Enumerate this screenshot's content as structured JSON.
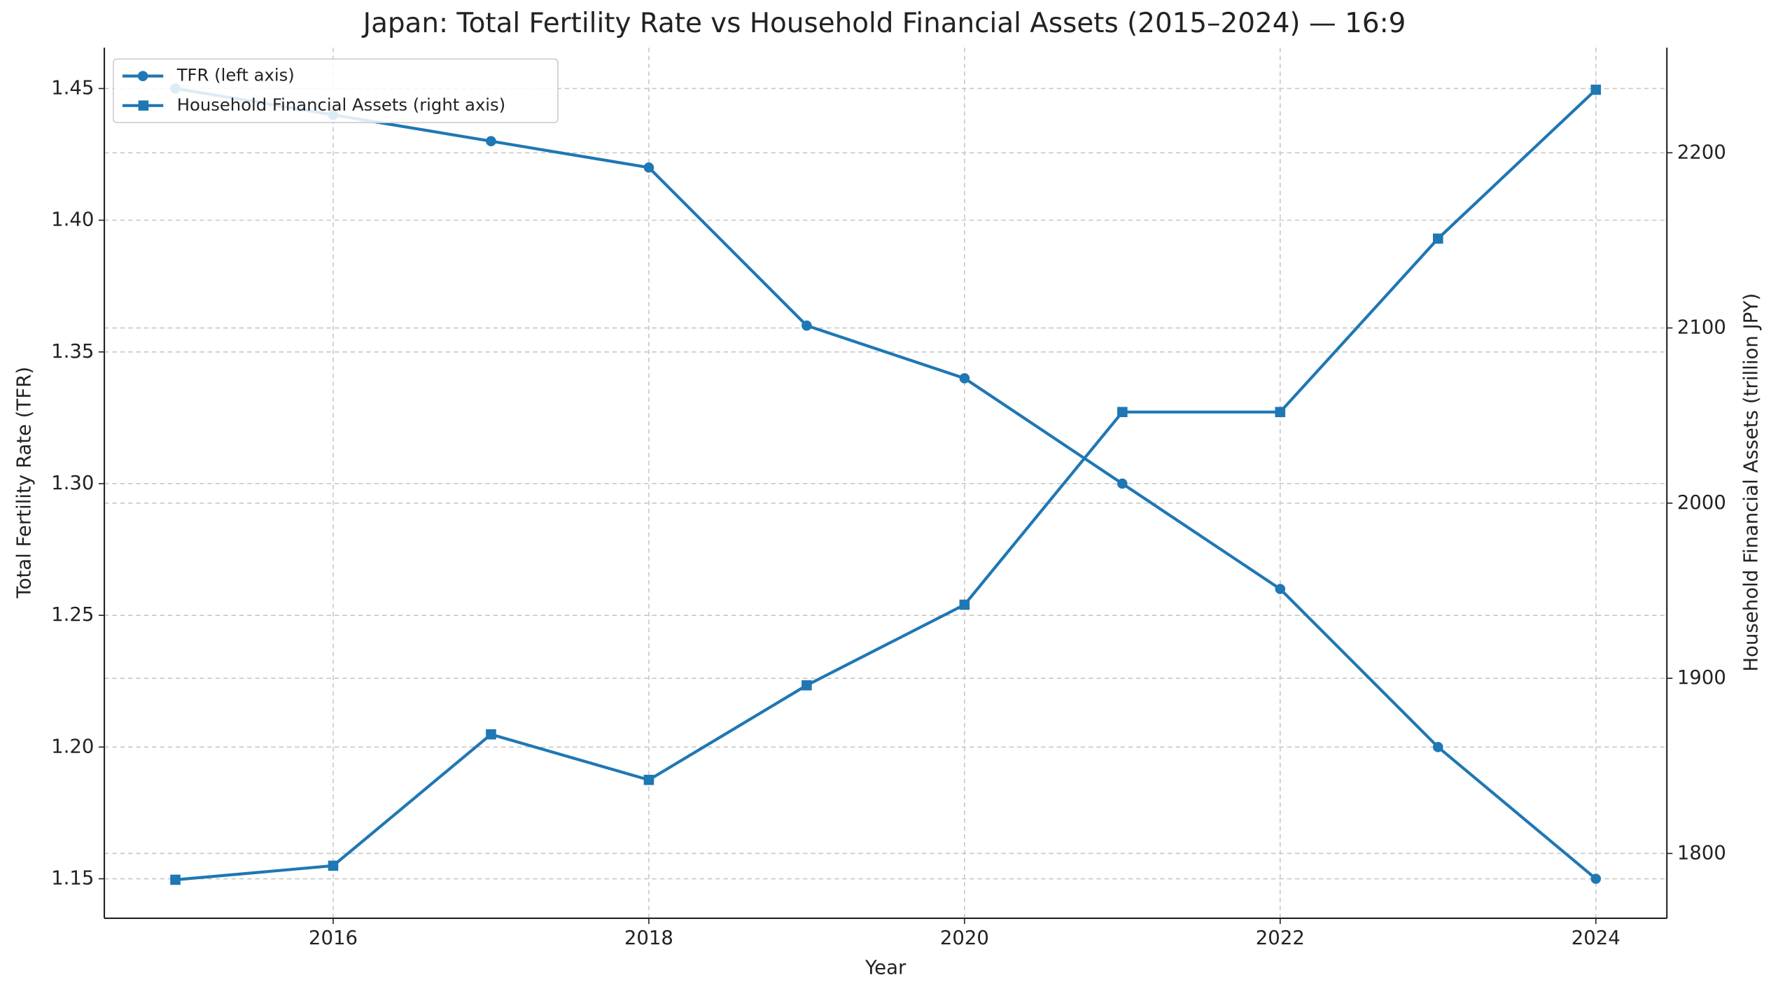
{
  "chart_data": {
    "type": "line",
    "title": "Japan: Total Fertility Rate vs Household Financial Assets (2015–2024) — 16:9",
    "xlabel": "Year",
    "ylabel": "Total Fertility Rate (TFR)",
    "y2label": "Household Financial Assets (trillion JPY)",
    "x": [
      2015,
      2016,
      2017,
      2018,
      2019,
      2020,
      2021,
      2022,
      2023,
      2024
    ],
    "series": [
      {
        "name": "TFR (left axis)",
        "color": "#1f77b4",
        "marker": "circle",
        "axis": "y",
        "values": [
          1.45,
          1.44,
          1.43,
          1.42,
          1.36,
          1.34,
          1.3,
          1.26,
          1.2,
          1.15
        ]
      },
      {
        "name": "Household Financial Assets (right axis)",
        "color": "#1f77b4",
        "marker": "square",
        "axis": "y2",
        "values": [
          1785,
          1793,
          1868,
          1842,
          1896,
          1942,
          2052,
          2052,
          2151,
          2236
        ]
      }
    ],
    "xlim": [
      2014.55,
      2024.45
    ],
    "xticks": [
      2016,
      2018,
      2020,
      2022,
      2024
    ],
    "ylim": [
      1.135,
      1.4655
    ],
    "yticks": [
      1.15,
      {
        "value": 1.2,
        "label": "1.20"
      },
      1.25,
      {
        "value": 1.3,
        "label": "1.30"
      },
      1.35,
      {
        "value": 1.4,
        "label": "1.40"
      },
      1.45
    ],
    "y2lim": [
      1763,
      2260
    ],
    "y2ticks": [
      1800,
      1900,
      2000,
      2100,
      2200
    ],
    "grid": true,
    "legend": "upper left"
  }
}
